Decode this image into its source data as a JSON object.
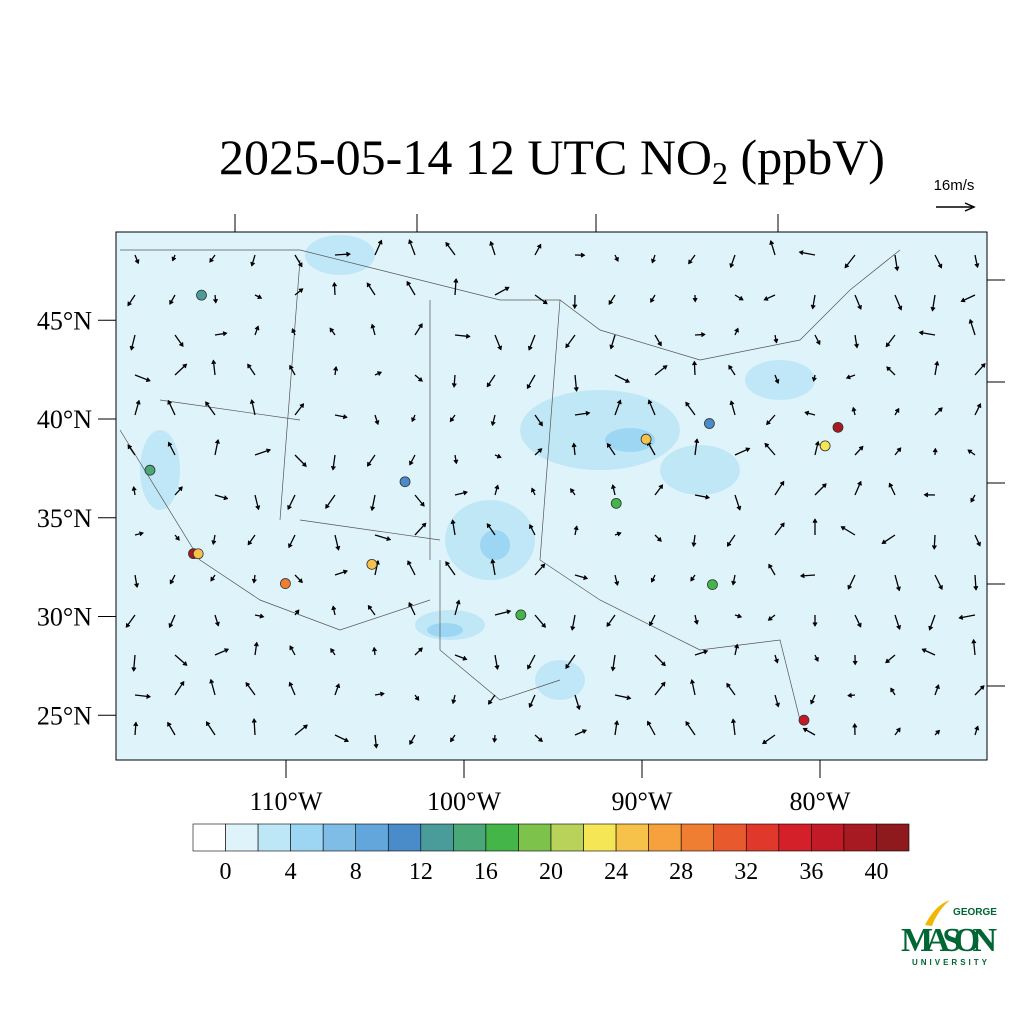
{
  "title": {
    "text": "2025-05-14 12 UTC NO",
    "subscript": "2",
    "suffix": " (ppbV)"
  },
  "wind_scale_label": "16m/s",
  "lat_ticks": [
    {
      "value": 45,
      "label": "45°N"
    },
    {
      "value": 40,
      "label": "40°N"
    },
    {
      "value": 35,
      "label": "35°N"
    },
    {
      "value": 30,
      "label": "30°N"
    },
    {
      "value": 25,
      "label": "25°N"
    }
  ],
  "lon_ticks": [
    {
      "value": -110,
      "label": "110°W"
    },
    {
      "value": -100,
      "label": "100°W"
    },
    {
      "value": -90,
      "label": "90°W"
    },
    {
      "value": -80,
      "label": "80°W"
    }
  ],
  "colorbar": {
    "colors": [
      "#ffffff",
      "#dff3fb",
      "#bde6f6",
      "#9dd6f3",
      "#7fbde6",
      "#62a6dc",
      "#4a8bc9",
      "#4a9c9a",
      "#4aa878",
      "#44b548",
      "#7dc24a",
      "#b8d25a",
      "#f5e655",
      "#f7c24a",
      "#f6a13e",
      "#f07e32",
      "#e85a2e",
      "#e0392b",
      "#d42028",
      "#c21a26",
      "#a81a22",
      "#8e1a1e"
    ],
    "labels": [
      0,
      4,
      8,
      12,
      16,
      20,
      24,
      28,
      32,
      36,
      40
    ]
  },
  "stations": [
    {
      "lon": -118.2,
      "lat": 34.05,
      "value": 38
    },
    {
      "lon": -117.9,
      "lat": 34.1,
      "value": 24
    },
    {
      "lon": -74.0,
      "lat": 40.7,
      "value": 38
    },
    {
      "lon": -80.2,
      "lat": 25.8,
      "value": 36
    },
    {
      "lon": -112.0,
      "lat": 33.45,
      "value": 28
    },
    {
      "lon": -87.7,
      "lat": 41.9,
      "value": 24
    },
    {
      "lon": -122.3,
      "lat": 47.6,
      "value": 12
    },
    {
      "lon": -122.4,
      "lat": 37.8,
      "value": 14
    },
    {
      "lon": -104.9,
      "lat": 39.7,
      "value": 10
    },
    {
      "lon": -96.8,
      "lat": 32.8,
      "value": 16
    },
    {
      "lon": -84.4,
      "lat": 33.7,
      "value": 16
    },
    {
      "lon": -75.2,
      "lat": 39.9,
      "value": 22
    },
    {
      "lon": -90.2,
      "lat": 38.6,
      "value": 16
    },
    {
      "lon": -106.6,
      "lat": 35.1,
      "value": 24
    },
    {
      "lon": -83.0,
      "lat": 42.3,
      "value": 10
    }
  ],
  "logo": {
    "top": "GEORGE",
    "main": "MASON",
    "bottom": "UNIVERSITY"
  }
}
